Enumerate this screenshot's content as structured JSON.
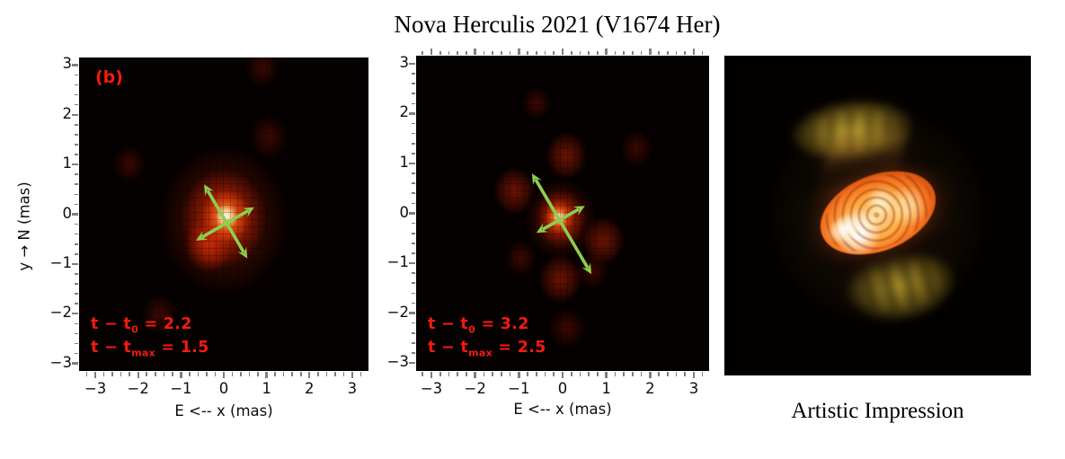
{
  "title": "Nova Herculis 2021 (V1674 Her)",
  "caption_right": "Artistic Impression",
  "axes": {
    "x_label": "E <-- x (mas)",
    "y_label": "y → N (mas)",
    "tick_labels": [
      "−3",
      "−2",
      "−1",
      "0",
      "1",
      "2",
      "3"
    ],
    "tick_values": [
      -3,
      -2,
      -1,
      0,
      1,
      2,
      3
    ]
  },
  "panel_left": {
    "tag": "(b)",
    "ann1_pre": "t − t",
    "ann1_sub": "0",
    "ann1_post": " = 2.2",
    "ann2_pre": "t − t",
    "ann2_sub": "max",
    "ann2_post": " = 1.5"
  },
  "panel_mid": {
    "ann1_pre": "t − t",
    "ann1_sub": "0",
    "ann1_post": " = 3.2",
    "ann2_pre": "t − t",
    "ann2_sub": "max",
    "ann2_post": " = 2.5"
  },
  "colors": {
    "annotation_red": "#f61a0e",
    "arrow_green": "#8ccf4e",
    "plot_background": "#050100",
    "page_background": "#ffffff"
  },
  "chart_data": [
    {
      "type": "heatmap",
      "panel": "left",
      "label": "(b)",
      "xlabel": "E <-- x (mas)",
      "ylabel": "y → N (mas)",
      "xlim": [
        -3.38,
        3.38
      ],
      "ylim": [
        -3.15,
        3.15
      ],
      "xticks": [
        -3,
        -2,
        -1,
        0,
        1,
        2,
        3
      ],
      "yticks": [
        -3,
        -2,
        -1,
        0,
        1,
        2,
        3
      ],
      "top_ticks": false,
      "annotations": [
        "t − t0 = 2.2",
        "t − tmax = 1.5"
      ],
      "source_blobs": [
        {
          "x": 0.0,
          "y": -0.12,
          "r": 1.95,
          "level": "glow"
        },
        {
          "x": 0.0,
          "y": -0.08,
          "r": 1.3,
          "level": "mid"
        },
        {
          "x": -0.35,
          "y": -0.6,
          "r": 0.75,
          "level": "mid"
        },
        {
          "x": 0.05,
          "y": -0.05,
          "r": 0.75,
          "level": "hot"
        },
        {
          "x": 0.05,
          "y": -0.05,
          "r": 0.34,
          "level": "core"
        },
        {
          "x": 1.05,
          "y": 1.55,
          "r": 0.6,
          "level": "faint"
        },
        {
          "x": -1.5,
          "y": -2.0,
          "r": 0.55,
          "level": "faint"
        },
        {
          "x": 0.9,
          "y": 2.95,
          "r": 0.55,
          "level": "faint"
        },
        {
          "x": -2.2,
          "y": 1.0,
          "r": 0.5,
          "level": "faint"
        }
      ],
      "arrows_mas": [
        {
          "x1": -0.46,
          "y1": 0.6,
          "x2": 0.55,
          "y2": -0.89
        },
        {
          "x1": -0.65,
          "y1": -0.53,
          "x2": 0.71,
          "y2": 0.14
        }
      ]
    },
    {
      "type": "heatmap",
      "panel": "mid",
      "label": "",
      "xlabel": "E <-- x (mas)",
      "ylabel": "",
      "xlim": [
        -3.35,
        3.35
      ],
      "ylim": [
        -3.16,
        3.16
      ],
      "xticks": [
        -3,
        -2,
        -1,
        0,
        1,
        2,
        3
      ],
      "yticks": [
        -3,
        -2,
        -1,
        0,
        1,
        2,
        3
      ],
      "top_ticks": true,
      "annotations": [
        "t − t0 = 3.2",
        "t − tmax = 2.5"
      ],
      "source_blobs": [
        {
          "x": -0.05,
          "y": -0.12,
          "r": 1.05,
          "level": "glow"
        },
        {
          "x": -0.06,
          "y": -0.1,
          "r": 0.75,
          "level": "mid"
        },
        {
          "x": -0.08,
          "y": -0.08,
          "r": 0.45,
          "level": "hot"
        },
        {
          "x": -0.08,
          "y": -0.08,
          "r": 0.2,
          "level": "core"
        },
        {
          "x": 0.08,
          "y": 1.15,
          "r": 0.6,
          "level": "low"
        },
        {
          "x": -1.1,
          "y": 0.45,
          "r": 0.6,
          "level": "low"
        },
        {
          "x": 0.92,
          "y": -0.55,
          "r": 0.62,
          "level": "low"
        },
        {
          "x": -0.05,
          "y": -1.32,
          "r": 0.62,
          "level": "low"
        },
        {
          "x": 0.68,
          "y": -1.15,
          "r": 0.5,
          "level": "faint"
        },
        {
          "x": -0.95,
          "y": -0.9,
          "r": 0.5,
          "level": "faint"
        },
        {
          "x": 0.1,
          "y": -2.3,
          "r": 0.55,
          "level": "faint"
        },
        {
          "x": 1.7,
          "y": 1.3,
          "r": 0.5,
          "level": "faint"
        },
        {
          "x": -0.6,
          "y": 2.2,
          "r": 0.45,
          "level": "faint"
        }
      ],
      "arrows_mas": [
        {
          "x1": -0.7,
          "y1": 0.8,
          "x2": 0.66,
          "y2": -1.22
        },
        {
          "x1": -0.6,
          "y1": -0.39,
          "x2": 0.51,
          "y2": 0.15
        }
      ]
    },
    {
      "type": "image",
      "panel": "right",
      "caption": "Artistic Impression",
      "description": "Artist's impression of the nova: bright tilted orange-white central ellipsoid with yellow-olive bipolar ejecta lobes above and below, on black background"
    }
  ]
}
